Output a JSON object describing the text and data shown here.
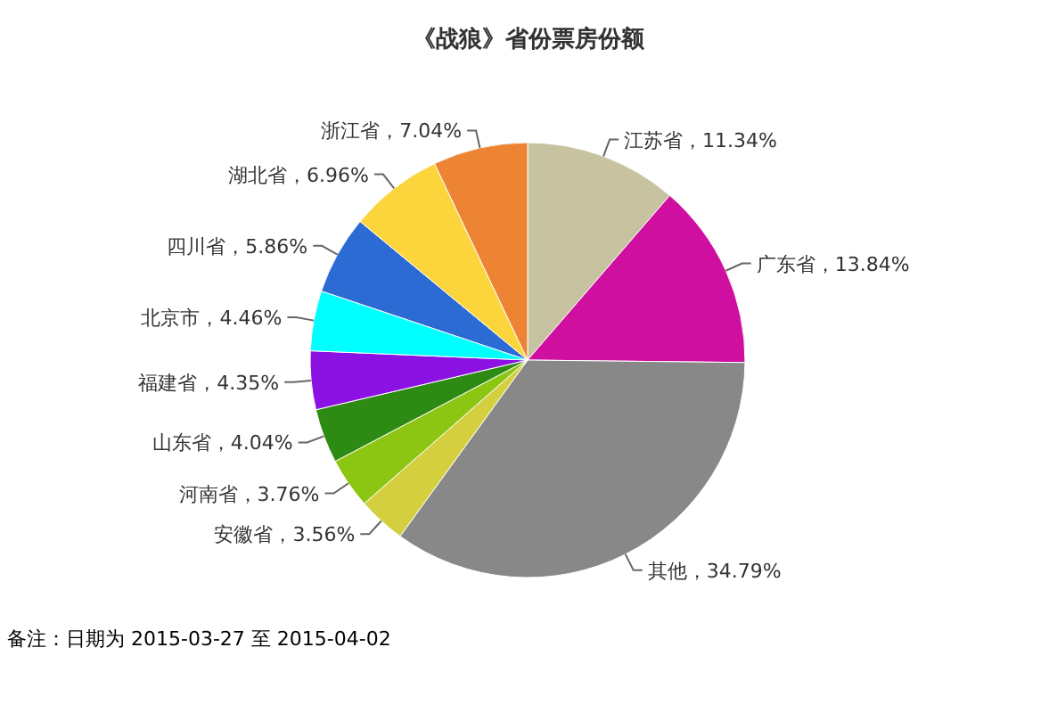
{
  "chart_data": {
    "type": "pie",
    "title": "《战狼》省份票房份额",
    "categories": [
      "江苏省",
      "广东省",
      "其他",
      "安徽省",
      "河南省",
      "山东省",
      "福建省",
      "北京市",
      "四川省",
      "湖北省",
      "浙江省"
    ],
    "values": [
      11.34,
      13.84,
      34.79,
      3.56,
      3.76,
      4.04,
      4.35,
      4.46,
      5.86,
      6.96,
      7.04
    ],
    "colors": [
      "#c7c29f",
      "#ce0f9f",
      "#888888",
      "#d4cf3f",
      "#8cc512",
      "#2d8a12",
      "#8c12e4",
      "#00ffff",
      "#2c6ad4",
      "#fcd43c",
      "#ec8434"
    ],
    "value_labels": [
      "，11.34%",
      "，13.84%",
      "，34.79%",
      "，3.56%",
      "，3.76%",
      "，4.04%",
      "，4.35%",
      "，4.46%",
      "，5.86%",
      "，6.96%",
      "，7.04%"
    ],
    "annotations": [
      "备注：日期为 2015-03-27 至 2015-04-02"
    ]
  }
}
